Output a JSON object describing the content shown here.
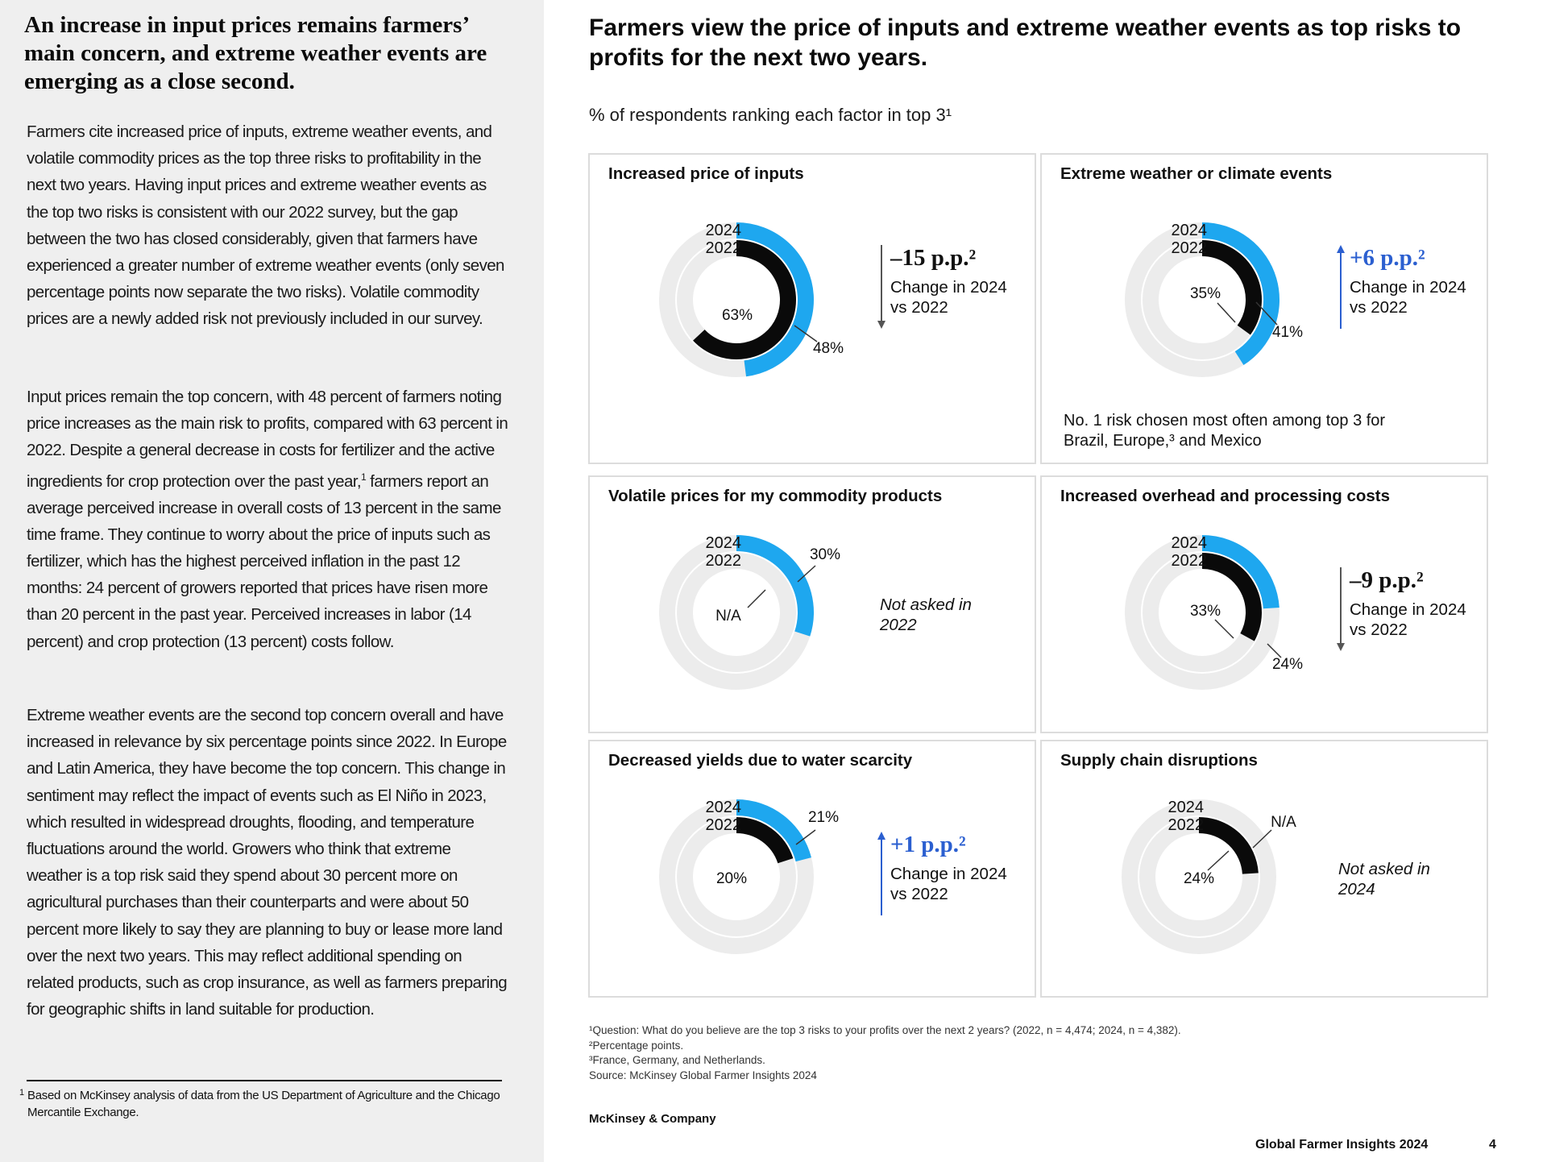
{
  "left": {
    "heading": "An increase in input prices remains farmers’ main concern, and extreme weather events are emerging as a close second.",
    "para1": "Farmers cite increased price of inputs, extreme weather events, and volatile commodity prices as the top three risks to profitability in the next two years. Having input prices and extreme weather events as the top two risks is consistent with our 2022 survey, but the gap between the two has closed considerably, given that farmers have experienced a greater number of extreme weather events (only seven percentage points now separate the two risks). Volatile commodity prices are a newly added risk not previously included in our survey.",
    "para2_a": "Input prices remain the top concern, with 48 percent of farmers noting price increases as the main risk to profits, compared with 63 percent in 2022. Despite a general decrease in costs for fertilizer and the active ingredients for crop protection over the past year,",
    "para2_sup": "1",
    "para2_b": " farmers report an average perceived increase in overall costs of 13 percent in the same time frame. They continue to worry about the price of inputs such as fertilizer, which has the highest perceived inflation in the past 12 months: 24 percent of growers reported that prices have risen more than 20 percent in the past year. Perceived increases in labor (14 percent) and crop protection (13 percent) costs follow.",
    "para3": "Extreme weather events are the second top concern overall and have increased in relevance by six percentage points since 2022. In Europe and Latin America, they have become the top concern. This change in sentiment may reflect the impact of events such as El Niño in 2023, which resulted in widespread droughts, flooding, and temperature fluctuations around the world. Growers who think that extreme weather is a top risk said they spend about 30 percent more on agricultural purchases than their counterparts and were about 50 percent more likely to say they are planning to buy or lease more land over the next two years. This may reflect additional spending on related products, such as crop insurance, as well as farmers preparing for geographic shifts in land suitable for production.",
    "footnote_mark": "1",
    "footnote": "Based on McKinsey analysis of data from the US Department of Agriculture and the Chicago Mercantile Exchange."
  },
  "right": {
    "title": "Farmers view the price of inputs and extreme weather events as top risks to profits for the next two years.",
    "subtitle": "% of respondents ranking each factor in top 3¹"
  },
  "colors": {
    "blue": "#1ea7ef",
    "black": "#0a0a0a",
    "track": "#ececec",
    "up_arrow": "#2b5fd0"
  },
  "chart_data": [
    {
      "type": "donut",
      "title": "Increased price of inputs",
      "series": [
        {
          "name": "2024",
          "value": 48,
          "label": "48%"
        },
        {
          "name": "2022",
          "value": 63,
          "label": "63%"
        }
      ],
      "change": {
        "value": "–15 p.p.²",
        "direction": "down",
        "text": "Change in 2024 vs 2022"
      }
    },
    {
      "type": "donut",
      "title": "Extreme weather or climate events",
      "series": [
        {
          "name": "2024",
          "value": 41,
          "label": "41%"
        },
        {
          "name": "2022",
          "value": 35,
          "label": "35%"
        }
      ],
      "change": {
        "value": "+6 p.p.²",
        "direction": "up",
        "text": "Change in 2024 vs 2022"
      },
      "note": "No. 1 risk chosen most often among top 3 for Brazil, Europe,³ and Mexico"
    },
    {
      "type": "donut",
      "title": "Volatile prices for my commodity products",
      "series": [
        {
          "name": "2024",
          "value": 30,
          "label": "30%"
        },
        {
          "name": "2022",
          "value": null,
          "label": "N/A"
        }
      ],
      "not_asked": "Not asked in 2022"
    },
    {
      "type": "donut",
      "title": "Increased overhead and processing costs",
      "series": [
        {
          "name": "2024",
          "value": 24,
          "label": "24%"
        },
        {
          "name": "2022",
          "value": 33,
          "label": "33%"
        }
      ],
      "change": {
        "value": "–9 p.p.²",
        "direction": "down",
        "text": "Change in 2024 vs 2022"
      }
    },
    {
      "type": "donut",
      "title": "Decreased yields due to water scarcity",
      "series": [
        {
          "name": "2024",
          "value": 21,
          "label": "21%"
        },
        {
          "name": "2022",
          "value": 20,
          "label": "20%"
        }
      ],
      "change": {
        "value": "+1 p.p.²",
        "direction": "up",
        "text": "Change in 2024 vs 2022"
      }
    },
    {
      "type": "donut",
      "title": "Supply chain disruptions",
      "series": [
        {
          "name": "2024",
          "value": null,
          "label": "N/A"
        },
        {
          "name": "2022",
          "value": 24,
          "label": "24%"
        }
      ],
      "not_asked": "Not asked in 2024"
    }
  ],
  "footnotes": [
    "¹Question: What do you believe are the top 3 risks to your profits over the next 2 years? (2022, n = 4,474; 2024, n = 4,382).",
    "²Percentage points.",
    "³France, Germany, and Netherlands.",
    " Source: McKinsey Global Farmer Insights 2024"
  ],
  "brand": "McKinsey & Company",
  "report": "Global Farmer Insights 2024",
  "page_number": "4"
}
